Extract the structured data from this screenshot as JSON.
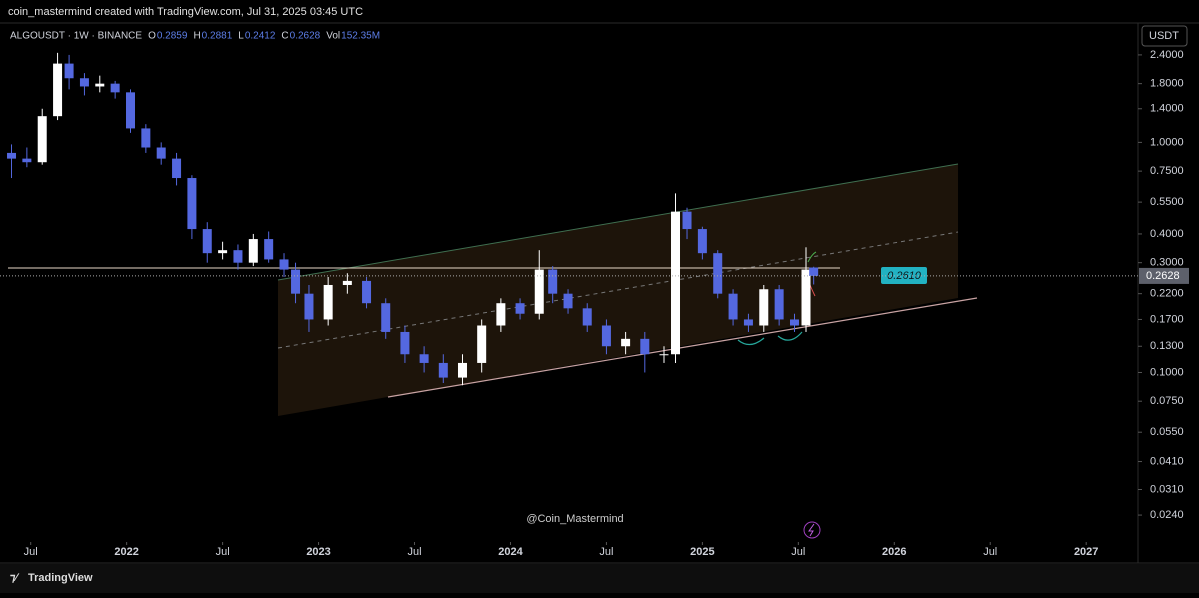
{
  "header": {
    "credit": "coin_mastermind created with TradingView.com, Jul 31, 2025 03:45 UTC",
    "symbol": "ALGOUSDT · 1W · BINANCE",
    "open_label": "O",
    "high_label": "H",
    "low_label": "L",
    "close_label": "C",
    "volume_label": "Vol",
    "volume": "152.35M",
    "currency": "USDT"
  },
  "watermark": "@Coin_Mastermind",
  "drawing_label": "0.2610",
  "footer": "TradingView",
  "chart_data": {
    "type": "candlestick",
    "log_y": true,
    "up_color": "#ffffff",
    "down_color": "#5468e0",
    "x": [
      2021.4,
      2021.48,
      2021.56,
      2021.64,
      2021.7,
      2021.78,
      2021.86,
      2021.94,
      2022.02,
      2022.1,
      2022.18,
      2022.26,
      2022.34,
      2022.42,
      2022.5,
      2022.58,
      2022.66,
      2022.74,
      2022.82,
      2022.88,
      2022.95,
      2023.05,
      2023.15,
      2023.25,
      2023.35,
      2023.45,
      2023.55,
      2023.65,
      2023.75,
      2023.85,
      2023.95,
      2024.05,
      2024.15,
      2024.22,
      2024.3,
      2024.4,
      2024.5,
      2024.6,
      2024.7,
      2024.8,
      2024.86,
      2024.92,
      2025.0,
      2025.08,
      2025.16,
      2025.24,
      2025.32,
      2025.4,
      2025.48,
      2025.54,
      2025.58
    ],
    "open": [
      0.9,
      0.85,
      0.82,
      1.3,
      2.2,
      1.9,
      1.75,
      1.8,
      1.65,
      1.15,
      0.95,
      0.85,
      0.7,
      0.42,
      0.33,
      0.34,
      0.3,
      0.38,
      0.31,
      0.28,
      0.22,
      0.17,
      0.24,
      0.25,
      0.2,
      0.15,
      0.12,
      0.11,
      0.095,
      0.11,
      0.16,
      0.2,
      0.18,
      0.28,
      0.22,
      0.19,
      0.16,
      0.13,
      0.14,
      0.12,
      0.12,
      0.5,
      0.42,
      0.33,
      0.22,
      0.17,
      0.16,
      0.23,
      0.17,
      0.16,
      0.2859
    ],
    "high": [
      0.98,
      0.95,
      1.4,
      2.45,
      2.4,
      2.0,
      1.95,
      1.85,
      1.7,
      1.2,
      1.0,
      0.9,
      0.72,
      0.45,
      0.37,
      0.36,
      0.4,
      0.41,
      0.33,
      0.3,
      0.24,
      0.26,
      0.27,
      0.26,
      0.21,
      0.16,
      0.13,
      0.12,
      0.12,
      0.17,
      0.21,
      0.21,
      0.34,
      0.29,
      0.23,
      0.2,
      0.17,
      0.15,
      0.15,
      0.13,
      0.6,
      0.52,
      0.43,
      0.34,
      0.23,
      0.18,
      0.24,
      0.24,
      0.18,
      0.35,
      0.2881
    ],
    "low": [
      0.7,
      0.78,
      0.8,
      1.25,
      1.7,
      1.6,
      1.65,
      1.55,
      1.1,
      0.9,
      0.8,
      0.65,
      0.38,
      0.3,
      0.31,
      0.28,
      0.29,
      0.3,
      0.26,
      0.2,
      0.15,
      0.16,
      0.22,
      0.19,
      0.14,
      0.11,
      0.1,
      0.09,
      0.088,
      0.1,
      0.15,
      0.17,
      0.17,
      0.2,
      0.18,
      0.15,
      0.12,
      0.12,
      0.1,
      0.11,
      0.11,
      0.38,
      0.31,
      0.21,
      0.16,
      0.15,
      0.15,
      0.16,
      0.15,
      0.15,
      0.2412
    ],
    "close": [
      0.85,
      0.82,
      1.3,
      2.2,
      1.9,
      1.75,
      1.8,
      1.65,
      1.15,
      0.95,
      0.85,
      0.7,
      0.42,
      0.33,
      0.34,
      0.3,
      0.38,
      0.31,
      0.28,
      0.22,
      0.17,
      0.24,
      0.25,
      0.2,
      0.15,
      0.12,
      0.11,
      0.095,
      0.11,
      0.16,
      0.2,
      0.18,
      0.28,
      0.22,
      0.19,
      0.16,
      0.13,
      0.14,
      0.12,
      0.12,
      0.5,
      0.42,
      0.33,
      0.22,
      0.17,
      0.16,
      0.23,
      0.17,
      0.16,
      0.28,
      0.2628
    ],
    "xlim": [
      2021.34,
      2027.27
    ],
    "xticks": [
      {
        "value": 2021.5,
        "label": "Jul"
      },
      2022,
      {
        "value": 2022.5,
        "label": "Jul"
      },
      2023,
      {
        "value": 2023.5,
        "label": "Jul"
      },
      2024,
      {
        "value": 2024.5,
        "label": "Jul"
      },
      2025,
      {
        "value": 2025.5,
        "label": "Jul"
      },
      2026,
      {
        "value": 2026.5,
        "label": "Jul"
      },
      2027
    ],
    "ylim": [
      0.0187,
      3.27
    ],
    "yticks": [
      {
        "value": 2.4,
        "label": "2.4000"
      },
      {
        "value": 1.8,
        "label": "1.8000"
      },
      {
        "value": 1.4,
        "label": "1.4000"
      },
      {
        "value": 1.0,
        "label": "1.0000"
      },
      {
        "value": 0.75,
        "label": "0.7500"
      },
      {
        "value": 0.55,
        "label": "0.5500"
      },
      {
        "value": 0.4,
        "label": "0.4000"
      },
      {
        "value": 0.3,
        "label": "0.3000"
      },
      {
        "value": 0.22,
        "label": "0.2200"
      },
      {
        "value": 0.17,
        "label": "0.1700"
      },
      {
        "value": 0.13,
        "label": "0.1300"
      },
      {
        "value": 0.1,
        "label": "0.1000"
      },
      {
        "value": 0.075,
        "label": "0.0750"
      },
      {
        "value": 0.055,
        "label": "0.0550"
      },
      {
        "value": 0.041,
        "label": "0.0410"
      },
      {
        "value": 0.031,
        "label": "0.0310"
      },
      {
        "value": 0.024,
        "label": "0.0240"
      }
    ]
  }
}
